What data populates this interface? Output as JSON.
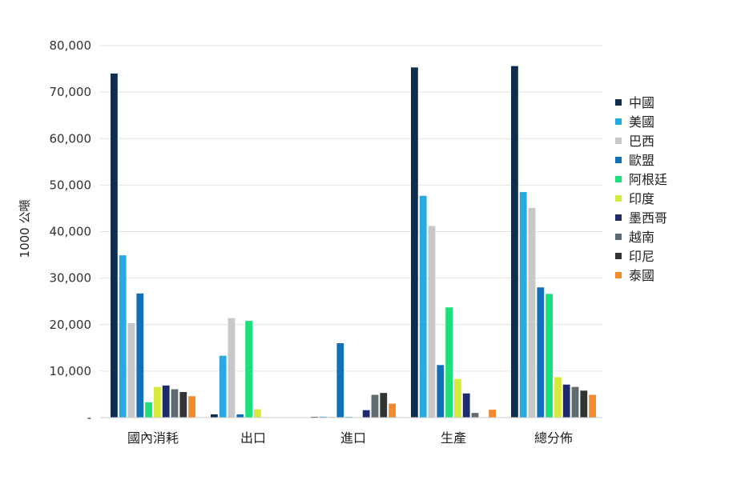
{
  "chart_data": {
    "type": "bar",
    "ylabel": "1000 公噸",
    "xlabel": "",
    "ylim": [
      0,
      80000
    ],
    "yticks": [
      {
        "value": 0,
        "label": "-"
      },
      {
        "value": 10000,
        "label": "10,000"
      },
      {
        "value": 20000,
        "label": "20,000"
      },
      {
        "value": 30000,
        "label": "30,000"
      },
      {
        "value": 40000,
        "label": "40,000"
      },
      {
        "value": 50000,
        "label": "50,000"
      },
      {
        "value": 60000,
        "label": "60,000"
      },
      {
        "value": 70000,
        "label": "70,000"
      },
      {
        "value": 80000,
        "label": "80,000"
      }
    ],
    "grid": true,
    "legend_position": "right",
    "categories": [
      "國內消耗",
      "出口",
      "進口",
      "生產",
      "總分佈"
    ],
    "series": [
      {
        "name": "中國",
        "color": "#0f2e4e",
        "values": [
          74000,
          700,
          100,
          75300,
          75600
        ]
      },
      {
        "name": "美國",
        "color": "#2aa8e0",
        "values": [
          34900,
          13300,
          200,
          47700,
          48500
        ]
      },
      {
        "name": "巴西",
        "color": "#c8c8c8",
        "values": [
          20300,
          21400,
          100,
          41200,
          45100
        ]
      },
      {
        "name": "歐盟",
        "color": "#1170b8",
        "values": [
          26700,
          700,
          16000,
          11300,
          28000
        ]
      },
      {
        "name": "阿根廷",
        "color": "#1ee07a",
        "values": [
          3300,
          20800,
          100,
          23700,
          26600
        ]
      },
      {
        "name": "印度",
        "color": "#d6ea3c",
        "values": [
          6600,
          1800,
          0,
          8300,
          8700
        ]
      },
      {
        "name": "墨西哥",
        "color": "#1c2b6e",
        "values": [
          6900,
          0,
          1600,
          5200,
          7100
        ]
      },
      {
        "name": "越南",
        "color": "#5f6a72",
        "values": [
          6100,
          0,
          4900,
          1000,
          6600
        ]
      },
      {
        "name": "印尼",
        "color": "#333333",
        "values": [
          5500,
          0,
          5300,
          0,
          5800
        ]
      },
      {
        "name": "泰國",
        "color": "#f28a2e",
        "values": [
          4600,
          0,
          3000,
          1700,
          4900
        ]
      }
    ]
  }
}
